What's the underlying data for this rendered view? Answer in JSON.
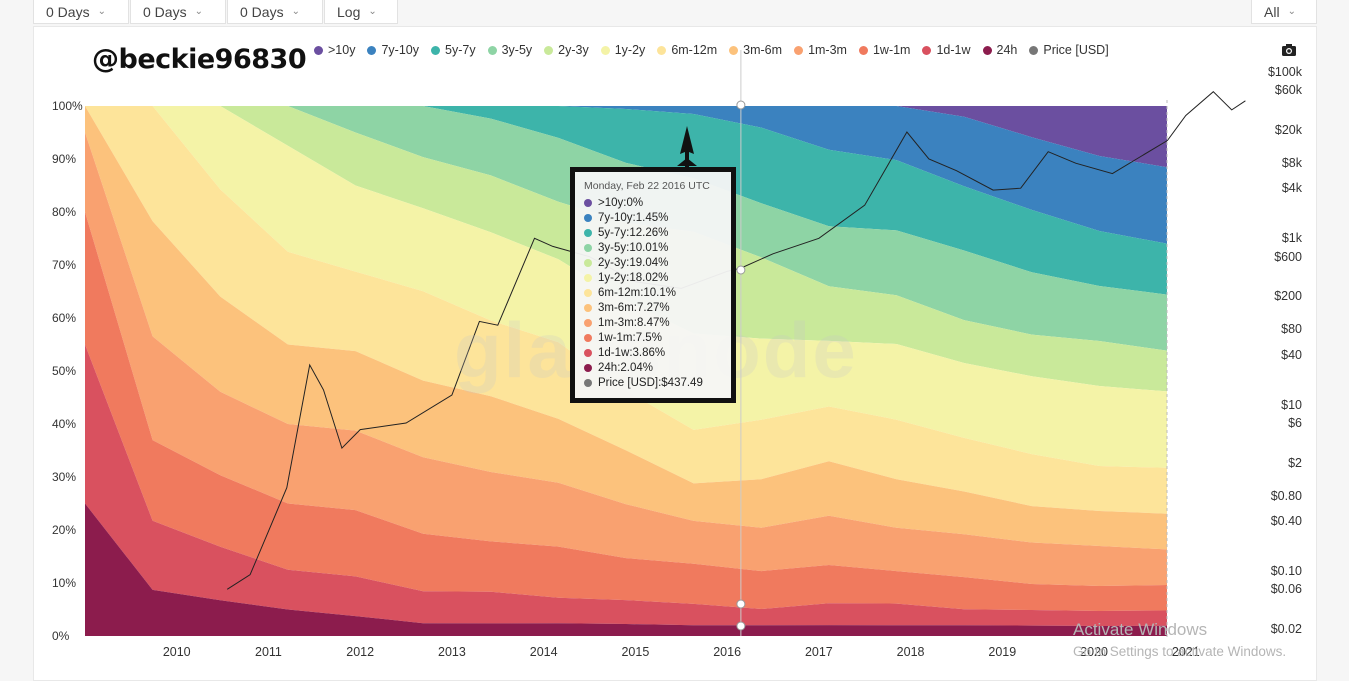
{
  "toolbar": {
    "dropdowns": [
      {
        "label": "0 Days"
      },
      {
        "label": "0 Days"
      },
      {
        "label": "0 Days"
      },
      {
        "label": "Log"
      },
      {
        "label": "All"
      }
    ]
  },
  "overlay_text": "@beckie96830",
  "watermark": "glassnode",
  "windows_notice": {
    "title": "Activate Windows",
    "subtitle": "Go to Settings to activate Windows."
  },
  "camera_icon": "camera-icon",
  "chart_data": {
    "type": "area",
    "stacked": true,
    "normalized": true,
    "series": [
      {
        "name": ">10y",
        "color": "#6b4fa0",
        "values": [
          0,
          0,
          0,
          0,
          0,
          0,
          0,
          0,
          0,
          0,
          0,
          0,
          0,
          2,
          6,
          10,
          12
        ]
      },
      {
        "name": "7y-10y",
        "color": "#3b82bf",
        "values": [
          0,
          0,
          0,
          0,
          0,
          0,
          0,
          0,
          0.5,
          1.5,
          4,
          8,
          10,
          13,
          14,
          15,
          15
        ]
      },
      {
        "name": "5y-7y",
        "color": "#3db4aa",
        "values": [
          0,
          0,
          0,
          0,
          0,
          0,
          2,
          5,
          9,
          12,
          14,
          14,
          13,
          12,
          12,
          11,
          10
        ]
      },
      {
        "name": "3y-5y",
        "color": "#8ed4a5",
        "values": [
          0,
          0,
          0,
          0,
          4,
          8,
          9,
          10,
          10,
          10,
          10,
          11,
          12,
          13,
          12,
          11,
          11
        ]
      },
      {
        "name": "2y-3y",
        "color": "#c9e99a",
        "values": [
          0,
          0,
          0,
          6,
          8,
          8,
          9,
          9,
          13,
          19,
          15,
          10,
          9,
          8,
          8,
          9,
          8
        ]
      },
      {
        "name": "1y-2y",
        "color": "#f4f3a7",
        "values": [
          0,
          0,
          14,
          16,
          13,
          13,
          14,
          13,
          15,
          18,
          15,
          12,
          14,
          14,
          15,
          16,
          15
        ]
      },
      {
        "name": "6m-12m",
        "color": "#fde49a",
        "values": [
          0,
          20,
          18,
          14,
          12,
          14,
          12,
          12,
          10,
          10,
          11,
          10,
          11,
          10,
          10,
          9,
          9
        ]
      },
      {
        "name": "3m-6m",
        "color": "#fcc27c",
        "values": [
          5,
          20,
          16,
          12,
          12,
          12,
          12,
          10,
          9,
          7,
          9,
          10,
          9,
          8,
          7,
          7,
          7
        ]
      },
      {
        "name": "1m-3m",
        "color": "#f9a170",
        "values": [
          15,
          18,
          14,
          12,
          12,
          12,
          11,
          10,
          9,
          8,
          8,
          9,
          8,
          8,
          8,
          8,
          7
        ]
      },
      {
        "name": "1w-1m",
        "color": "#f07a5e",
        "values": [
          25,
          14,
          12,
          10,
          10,
          9,
          8,
          8,
          7,
          7.5,
          7,
          7,
          6,
          6,
          5,
          5,
          5
        ]
      },
      {
        "name": "1d-1w",
        "color": "#d9515f",
        "values": [
          30,
          12,
          9,
          6,
          6,
          5,
          5,
          4,
          4,
          4,
          3,
          4,
          4,
          3,
          3,
          3,
          3
        ]
      },
      {
        "name": "24h",
        "color": "#8c1c4d",
        "values": [
          25,
          8,
          6,
          4,
          3,
          2,
          2,
          2,
          2,
          2,
          2,
          2,
          2,
          2,
          2,
          2,
          2
        ]
      }
    ],
    "price_series": {
      "name": "Price [USD]",
      "color": "#777777",
      "x": [
        2010.55,
        2010.8,
        2011.0,
        2011.2,
        2011.45,
        2011.6,
        2011.8,
        2012.0,
        2012.5,
        2013.0,
        2013.3,
        2013.5,
        2013.9,
        2014.1,
        2014.5,
        2015.0,
        2015.5,
        2016.0,
        2016.15,
        2016.5,
        2017.0,
        2017.5,
        2017.96,
        2018.2,
        2018.5,
        2018.9,
        2019.2,
        2019.5,
        2019.8,
        2020.2,
        2020.5,
        2020.8,
        2021.0,
        2021.3,
        2021.5,
        2021.65
      ],
      "y": [
        0.06,
        0.09,
        0.3,
        1,
        30,
        15,
        3,
        5,
        6,
        13,
        100,
        90,
        1000,
        800,
        600,
        300,
        250,
        400,
        437.49,
        650,
        1000,
        2500,
        19000,
        9000,
        6500,
        3800,
        4000,
        11000,
        8000,
        6000,
        9500,
        15000,
        30000,
        58000,
        35000,
        45000
      ]
    },
    "x_tick_labels": [
      "2010",
      "2011",
      "2012",
      "2013",
      "2014",
      "2015",
      "2016",
      "2017",
      "2018",
      "2019",
      "2020",
      "2021"
    ],
    "y_left_tick_labels": [
      "100%",
      "90%",
      "80%",
      "70%",
      "60%",
      "50%",
      "40%",
      "30%",
      "20%",
      "10%",
      "0%"
    ],
    "y_right_tick_labels": [
      "$100k",
      "$60k",
      "$20k",
      "$8k",
      "$4k",
      "$1k",
      "$600",
      "$200",
      "$80",
      "$40",
      "$10",
      "$6",
      "$2",
      "$0.80",
      "$0.40",
      "$0.10",
      "$0.06",
      "$0.02"
    ],
    "x_range": [
      2009.0,
      2021.7
    ],
    "y_scale_right": "log",
    "legend_position": "top",
    "tooltip": {
      "date": "Monday, Feb 22 2016 UTC",
      "rows": [
        {
          "label": ">10y",
          "value": "0%",
          "color": "#6b4fa0"
        },
        {
          "label": "7y-10y",
          "value": "1.45%",
          "color": "#3b82bf"
        },
        {
          "label": "5y-7y",
          "value": "12.26%",
          "color": "#3db4aa"
        },
        {
          "label": "3y-5y",
          "value": "10.01%",
          "color": "#8ed4a5"
        },
        {
          "label": "2y-3y",
          "value": "19.04%",
          "color": "#c9e99a"
        },
        {
          "label": "1y-2y",
          "value": "18.02%",
          "color": "#f4f3a7"
        },
        {
          "label": "6m-12m",
          "value": "10.1%",
          "color": "#fde49a"
        },
        {
          "label": "3m-6m",
          "value": "7.27%",
          "color": "#fcc27c"
        },
        {
          "label": "1m-3m",
          "value": "8.47%",
          "color": "#f9a170"
        },
        {
          "label": "1w-1m",
          "value": "7.5%",
          "color": "#f07a5e"
        },
        {
          "label": "1d-1w",
          "value": "3.86%",
          "color": "#d9515f"
        },
        {
          "label": "24h",
          "value": "2.04%",
          "color": "#8c1c4d"
        },
        {
          "label": "Price [USD]",
          "value": "$437.49",
          "color": "#777777"
        }
      ]
    }
  }
}
